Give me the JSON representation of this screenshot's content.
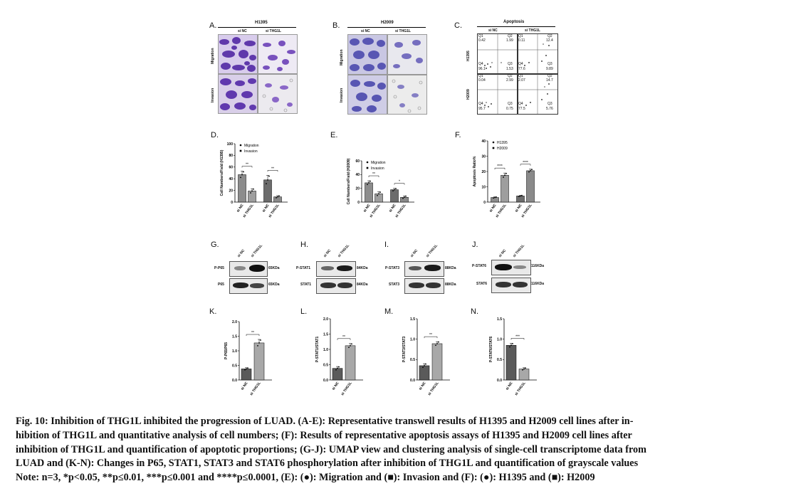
{
  "panels": {
    "A": {
      "letter": "A.",
      "cell_line": "H1395",
      "conditions": [
        "si NC",
        "si THG1L"
      ],
      "rows": [
        "Migration",
        "Invasion"
      ]
    },
    "B": {
      "letter": "B.",
      "cell_line": "H2009",
      "conditions": [
        "si NC",
        "si THG1L"
      ],
      "rows": [
        "Migration",
        "Invasion"
      ]
    },
    "C": {
      "letter": "C.",
      "title": "Apoptosis",
      "conditions": [
        "si NC",
        "si THG1L"
      ],
      "rows": [
        "H1395",
        "H2009"
      ],
      "quadrants": [
        [
          [
            "Q1",
            "0.42"
          ],
          [
            "Q2",
            "1.99"
          ],
          [
            "Q4",
            "96.1"
          ],
          [
            "Q3",
            "1.53"
          ]
        ],
        [
          [
            "Q1",
            "0.11"
          ],
          [
            "Q2",
            "12.4"
          ],
          [
            "Q4",
            "77.6"
          ],
          [
            "Q3",
            "9.89"
          ]
        ],
        [
          [
            "Q1",
            "0.04"
          ],
          [
            "Q2",
            "2.99"
          ],
          [
            "Q4",
            "95.7"
          ],
          [
            "Q3",
            "0.75"
          ]
        ],
        [
          [
            "Q1",
            "2.07"
          ],
          [
            "Q2",
            "14.7"
          ],
          [
            "Q4",
            "77.5"
          ],
          [
            "Q3",
            "5.76"
          ]
        ]
      ]
    },
    "G": {
      "letter": "G.",
      "target": "P-P65",
      "total": "P65",
      "kda_target": "65KDa",
      "kda_total": "65KDa"
    },
    "H": {
      "letter": "H.",
      "target": "P-STAT1",
      "total": "STAT1",
      "kda_target": "84KDa",
      "kda_total": "84KDa"
    },
    "I": {
      "letter": "I.",
      "target": "P-STAT3",
      "total": "STAT3",
      "kda_target": "88KDa",
      "kda_total": "88KDa"
    },
    "J": {
      "letter": "J.",
      "target": "P-STAT6",
      "total": "STAT6",
      "kda_target": "116KDa",
      "kda_total": "116KDa"
    },
    "wb_conditions": [
      "si NC",
      "si THG1L"
    ]
  },
  "chart_data": [
    {
      "id": "D",
      "letter": "D.",
      "type": "bar",
      "categories": [
        "si NC",
        "si THG1L",
        "si NC",
        "si THG1L"
      ],
      "groups": [
        "Migration",
        "Invasion"
      ],
      "values": [
        47,
        19,
        38,
        9
      ],
      "errors": [
        6,
        4,
        8,
        2
      ],
      "ylabel": "Cell Numbers/Field (H1395)",
      "ylim": [
        0,
        100
      ],
      "yticks": [
        "0",
        "20",
        "40",
        "60",
        "80",
        "100"
      ],
      "legend": [
        "Migration",
        "Invasion"
      ],
      "significance": [
        "**",
        "**"
      ]
    },
    {
      "id": "E",
      "letter": "E.",
      "type": "bar",
      "categories": [
        "si NC",
        "si THG1L",
        "si NC",
        "si THG1L"
      ],
      "groups": [
        "Migration",
        "Invasion"
      ],
      "values": [
        28,
        12,
        18,
        7
      ],
      "errors": [
        3,
        3,
        2,
        2
      ],
      "ylabel": "Cell Numbers/Field (H2009)",
      "ylim": [
        0,
        60
      ],
      "yticks": [
        "0",
        "20",
        "40",
        "60"
      ],
      "legend": [
        "Migration",
        "Invasion"
      ],
      "significance": [
        "**",
        "*"
      ]
    },
    {
      "id": "F",
      "letter": "F.",
      "type": "bar",
      "categories": [
        "si NC",
        "si THG1L",
        "si NC",
        "si THG1L"
      ],
      "groups": [
        "H1395",
        "H2009"
      ],
      "values": [
        3,
        17.5,
        4,
        20.5
      ],
      "errors": [
        0.4,
        1.5,
        0.4,
        1
      ],
      "ylabel": "Apoptosis Ratio%",
      "ylim": [
        0,
        40
      ],
      "yticks": [
        "0",
        "10",
        "20",
        "30",
        "40"
      ],
      "legend": [
        "H1395",
        "H2009"
      ],
      "significance": [
        "****",
        "****"
      ]
    },
    {
      "id": "K",
      "letter": "K.",
      "type": "bar",
      "categories": [
        "si NC",
        "si THG1L"
      ],
      "values": [
        0.38,
        1.27
      ],
      "errors": [
        0.04,
        0.12
      ],
      "ylabel": "P-P65/P65",
      "ylim": [
        0,
        2.0
      ],
      "yticks": [
        "0.0",
        "0.5",
        "1.0",
        "1.5",
        "2.0"
      ],
      "significance": [
        "**"
      ]
    },
    {
      "id": "L",
      "letter": "L.",
      "type": "bar",
      "categories": [
        "si NC",
        "si THG1L"
      ],
      "values": [
        0.38,
        1.12
      ],
      "errors": [
        0.06,
        0.07
      ],
      "ylabel": "P-STAT1/STAT1",
      "ylim": [
        0,
        2.0
      ],
      "yticks": [
        "0.0",
        "0.5",
        "1.0",
        "1.5",
        "2.0"
      ],
      "significance": [
        "**"
      ]
    },
    {
      "id": "M",
      "letter": "M.",
      "type": "bar",
      "categories": [
        "si NC",
        "si THG1L"
      ],
      "values": [
        0.35,
        0.89
      ],
      "errors": [
        0.05,
        0.05
      ],
      "ylabel": "P-STAT3/STAT3",
      "ylim": [
        0,
        1.5
      ],
      "yticks": [
        "0.0",
        "0.5",
        "1.0",
        "1.5"
      ],
      "significance": [
        "**"
      ]
    },
    {
      "id": "N",
      "letter": "N.",
      "type": "bar",
      "categories": [
        "si NC",
        "si THG1L"
      ],
      "values": [
        0.85,
        0.27
      ],
      "errors": [
        0.05,
        0.03
      ],
      "ylabel": "P-STAT6/STAT6",
      "ylim": [
        0,
        1.5
      ],
      "yticks": [
        "0.0",
        "0.5",
        "1.0",
        "1.5"
      ],
      "significance": [
        "***"
      ]
    }
  ],
  "caption": {
    "lines": [
      "Fig. 10: Inhibition of THG1L inhibited the progression of LUAD. (A-E): Representative transwell results of H1395 and H2009 cell lines after in-",
      "hibition of THG1L and quantitative analysis of cell numbers; (F): Results of representative apoptosis assays of H1395 and H2009 cell lines after",
      "inhibition of THG1L and quantification of apoptotic proportions; (G-J): UMAP view and clustering analysis of single-cell transcriptome data from",
      "LUAD and (K-N): Changes in P65, STAT1, STAT3 and STAT6 phosphorylation after inhibition of THG1L and quantification of grayscale values",
      "Note: n=3, *p<0.05, **p≤0.01, ***p≤0.001 and ****p≤0.0001, (E): (●): Migration and (■): Invasion and (F): (●): H1395 and (■): H2009"
    ]
  }
}
